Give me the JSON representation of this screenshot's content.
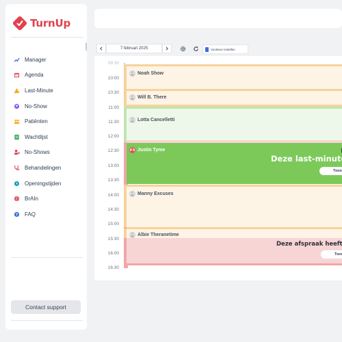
{
  "app": {
    "name": "TurnUp",
    "brand_color": "#e0424d"
  },
  "sidebar": {
    "items": [
      {
        "label": "Manager",
        "icon": "chart-icon",
        "color": "#3b6fd8"
      },
      {
        "label": "Agenda",
        "icon": "calendar-icon",
        "color": "#e0424d"
      },
      {
        "label": "Last-Minute",
        "icon": "warning-icon",
        "color": "#f2b01e"
      },
      {
        "label": "No-Show",
        "icon": "no-show-icon",
        "color": "#8b5cf6"
      },
      {
        "label": "Patiënten",
        "icon": "users-icon",
        "color": "#f2b01e"
      },
      {
        "label": "Wachtlijst",
        "icon": "list-icon",
        "color": "#3aa655"
      },
      {
        "label": "No-Shows",
        "icon": "user-x-icon",
        "color": "#e0424d"
      },
      {
        "label": "Behandelingen",
        "icon": "stethoscope-icon",
        "color": "#e0424d"
      },
      {
        "label": "Openingstijden",
        "icon": "clock-icon",
        "color": "#17a2b8"
      },
      {
        "label": "BrAIn",
        "icon": "brain-icon",
        "color": "#e0424d"
      },
      {
        "label": "FAQ",
        "icon": "help-icon",
        "color": "#3b6fd8"
      }
    ],
    "support_label": "Contact support"
  },
  "toolbar": {
    "date": "7 februari 2025",
    "prev_icon": "chevron-left-icon",
    "next_icon": "chevron-right-icon",
    "settings_icon": "gear-icon",
    "refresh_icon": "refresh-icon",
    "button_label": "Voorkeur instellen"
  },
  "calendar": {
    "times": [
      "09:30",
      "10:00",
      "10:30",
      "11:00",
      "11:30",
      "12:00",
      "12:30",
      "13:00",
      "13:30",
      "14:00",
      "14:30",
      "15:00",
      "15:30",
      "16:00",
      "16:30"
    ],
    "appointments": [
      {
        "name": "Noah Show",
        "status": "orange"
      },
      {
        "name": "Will B. There",
        "status": "orange"
      },
      {
        "name": "Lotta Cancelletti",
        "status": "green"
      },
      {
        "name": "Justin Tyme",
        "status": "green-filled"
      },
      {
        "name": "Manny Excuses",
        "status": "orange"
      },
      {
        "name": "Albie Theranetime",
        "status": "orange"
      }
    ],
    "last_minute_banner": {
      "title": "Deze last-minute",
      "button_label": "Toon"
    },
    "no_show_banner": {
      "title": "Deze afspraak heeft een",
      "button_label": "Toon"
    },
    "colors": {
      "orange_border": "#f6d29a",
      "orange_fill": "#fdf4e6",
      "green_border": "#bfe5b0",
      "green_fill": "#eef8ea",
      "green_filled": "#7cc95a",
      "red_border": "#f2a6a6",
      "red_fill": "#f7d5d5"
    }
  }
}
